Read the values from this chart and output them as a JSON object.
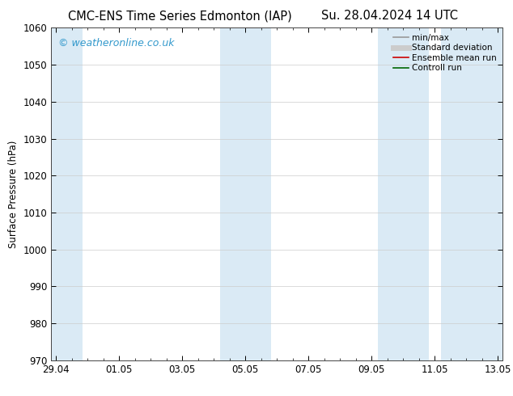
{
  "title_left": "CMC-ENS Time Series Edmonton (IAP)",
  "title_right": "Su. 28.04.2024 14 UTC",
  "ylabel": "Surface Pressure (hPa)",
  "ylim": [
    970,
    1060
  ],
  "yticks": [
    970,
    980,
    990,
    1000,
    1010,
    1020,
    1030,
    1040,
    1050,
    1060
  ],
  "xtick_labels": [
    "29.04",
    "01.05",
    "03.05",
    "05.05",
    "07.05",
    "09.05",
    "11.05",
    "13.05"
  ],
  "xtick_positions": [
    0,
    2,
    4,
    6,
    8,
    10,
    12,
    14
  ],
  "xmin": 0,
  "xmax": 14,
  "shaded_bands": [
    {
      "xstart": -0.15,
      "xend": 0.85
    },
    {
      "xstart": 5.2,
      "xend": 6.8
    },
    {
      "xstart": 10.2,
      "xend": 11.8
    },
    {
      "xstart": 12.2,
      "xend": 14.15
    }
  ],
  "band_color": "#daeaf5",
  "watermark_text": "© weatheronline.co.uk",
  "watermark_color": "#3399cc",
  "legend_entries": [
    {
      "label": "min/max",
      "color": "#999999",
      "lw": 1.2
    },
    {
      "label": "Standard deviation",
      "color": "#cccccc",
      "lw": 5
    },
    {
      "label": "Ensemble mean run",
      "color": "#cc0000",
      "lw": 1.2
    },
    {
      "label": "Controll run",
      "color": "#006600",
      "lw": 1.2
    }
  ],
  "bg_color": "#ffffff",
  "spine_color": "#444444",
  "title_fontsize": 10.5,
  "label_fontsize": 8.5,
  "tick_fontsize": 8.5,
  "watermark_fontsize": 9,
  "legend_fontsize": 7.5
}
